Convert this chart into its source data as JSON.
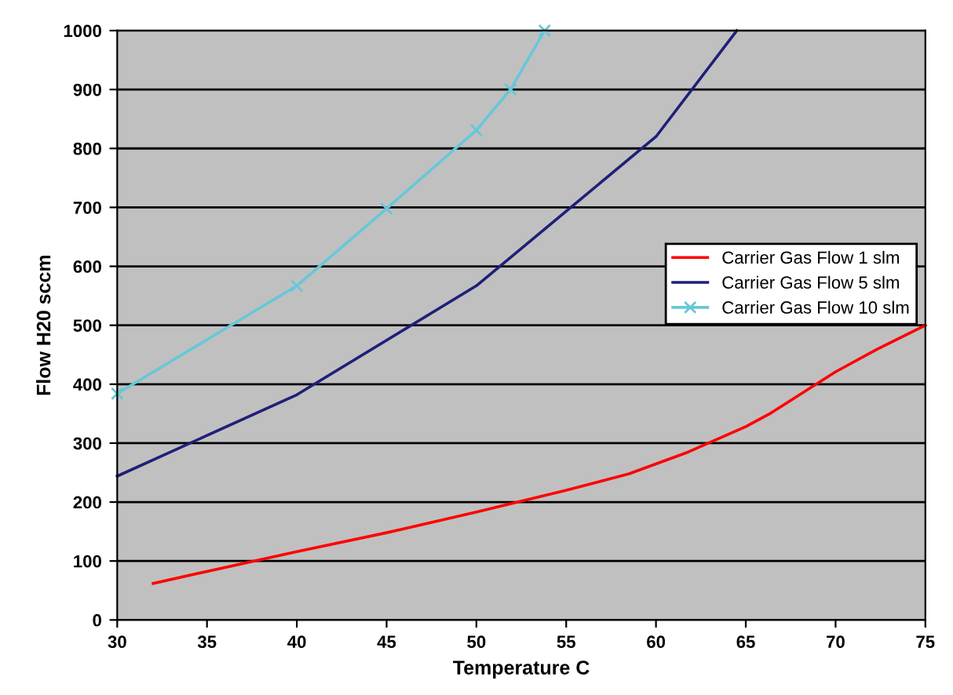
{
  "chart_data": {
    "type": "line",
    "xlabel": "Temperature C",
    "ylabel": "Flow H20 sccm",
    "xlim": [
      30,
      75
    ],
    "xticks": [
      30,
      35,
      40,
      45,
      50,
      55,
      60,
      65,
      70,
      75
    ],
    "ylim": [
      0,
      1000
    ],
    "yticks": [
      0,
      100,
      200,
      300,
      400,
      500,
      600,
      700,
      800,
      900,
      1000
    ],
    "grid": "y",
    "legend": "right",
    "series": [
      {
        "name": "Carrier Gas Flow 1 slm",
        "color": "#ff0000",
        "marker": "none",
        "x": [
          32,
          40,
          45,
          50,
          55,
          58.5,
          61.8,
          65,
          66.4,
          70,
          72.3,
          75
        ],
        "values": [
          62,
          116,
          148,
          183,
          220,
          248,
          285,
          328,
          351,
          421,
          459,
          500
        ]
      },
      {
        "name": "Carrier Gas Flow 5 slm",
        "color": "#1f1f7a",
        "marker": "none",
        "x": [
          30,
          40,
          50,
          60,
          64.5
        ],
        "values": [
          244,
          382,
          567,
          820,
          1000
        ]
      },
      {
        "name": "Carrier Gas Flow 10 slm",
        "color": "#66c8d8",
        "marker": "cross",
        "x": [
          30,
          40,
          45,
          50,
          51.9,
          53.8
        ],
        "values": [
          384,
          567,
          698,
          831,
          900,
          1000
        ]
      }
    ]
  }
}
